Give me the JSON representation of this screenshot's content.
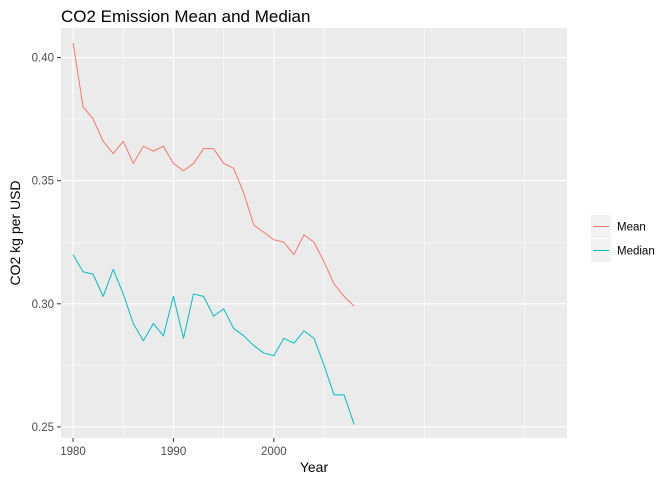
{
  "chart_data": {
    "type": "line",
    "title": "CO2 Emission Mean and Median",
    "xlabel": "Year",
    "ylabel": "CO2 kg per USD",
    "xlim": [
      1978.8,
      2029.2
    ],
    "ylim": [
      0.2455,
      0.412
    ],
    "xticks": [
      1980,
      1990,
      2000
    ],
    "xtick_labels": [
      "1980",
      "1990",
      "2000"
    ],
    "yticks": [
      0.25,
      0.3,
      0.35,
      0.4
    ],
    "ytick_labels": [
      "0.25",
      "0.30",
      "0.35",
      "0.40"
    ],
    "grid": true,
    "legend": "right",
    "x": [
      1980,
      1981,
      1982,
      1983,
      1984,
      1985,
      1986,
      1987,
      1988,
      1989,
      1990,
      1991,
      1992,
      1993,
      1994,
      1995,
      1996,
      1997,
      1998,
      1999,
      2000,
      2001,
      2002,
      2003,
      2004,
      2005,
      2006,
      2007,
      2008
    ],
    "series": [
      {
        "name": "Mean",
        "color": "#F8766D",
        "values": [
          0.406,
          0.38,
          0.375,
          0.366,
          0.361,
          0.366,
          0.357,
          0.364,
          0.362,
          0.364,
          0.357,
          0.354,
          0.357,
          0.363,
          0.363,
          0.357,
          0.355,
          0.345,
          0.332,
          0.329,
          0.326,
          0.325,
          0.32,
          0.328,
          0.325,
          0.317,
          0.308,
          0.303,
          0.299
        ]
      },
      {
        "name": "Median",
        "color": "#00BFC4",
        "values": [
          0.32,
          0.313,
          0.312,
          0.303,
          0.314,
          0.304,
          0.292,
          0.285,
          0.292,
          0.287,
          0.303,
          0.286,
          0.304,
          0.303,
          0.295,
          0.298,
          0.29,
          0.287,
          0.283,
          0.28,
          0.279,
          0.286,
          0.284,
          0.289,
          0.286,
          0.275,
          0.263,
          0.263,
          0.251
        ]
      }
    ]
  },
  "colors": {
    "panel_background": "#EBEBEB",
    "grid_major": "#FFFFFF",
    "tick_text": "#4D4D4D",
    "legend_key_background": "#F2F2F2"
  }
}
